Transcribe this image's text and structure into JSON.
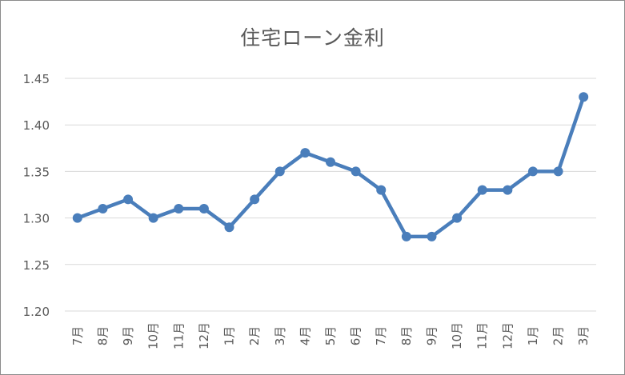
{
  "chart_data": {
    "type": "line",
    "title": "住宅ローン金利",
    "xlabel": "",
    "ylabel": "",
    "categories": [
      "7月",
      "8月",
      "9月",
      "10月",
      "11月",
      "12月",
      "1月",
      "2月",
      "3月",
      "4月",
      "5月",
      "6月",
      "7月",
      "8月",
      "9月",
      "10月",
      "11月",
      "12月",
      "1月",
      "2月",
      "3月"
    ],
    "series": [
      {
        "values": [
          1.3,
          1.31,
          1.32,
          1.3,
          1.31,
          1.31,
          1.29,
          1.32,
          1.35,
          1.37,
          1.36,
          1.35,
          1.33,
          1.28,
          1.28,
          1.3,
          1.33,
          1.33,
          1.35,
          1.35,
          1.43
        ]
      }
    ],
    "ylim": [
      1.2,
      1.45
    ],
    "yticks": [
      "1.20",
      "1.25",
      "1.30",
      "1.35",
      "1.40",
      "1.45"
    ],
    "grid": true,
    "legend": "none",
    "colors": {
      "line": "#4a7ebb",
      "grid": "#d9d9d9",
      "text": "#595959"
    }
  }
}
